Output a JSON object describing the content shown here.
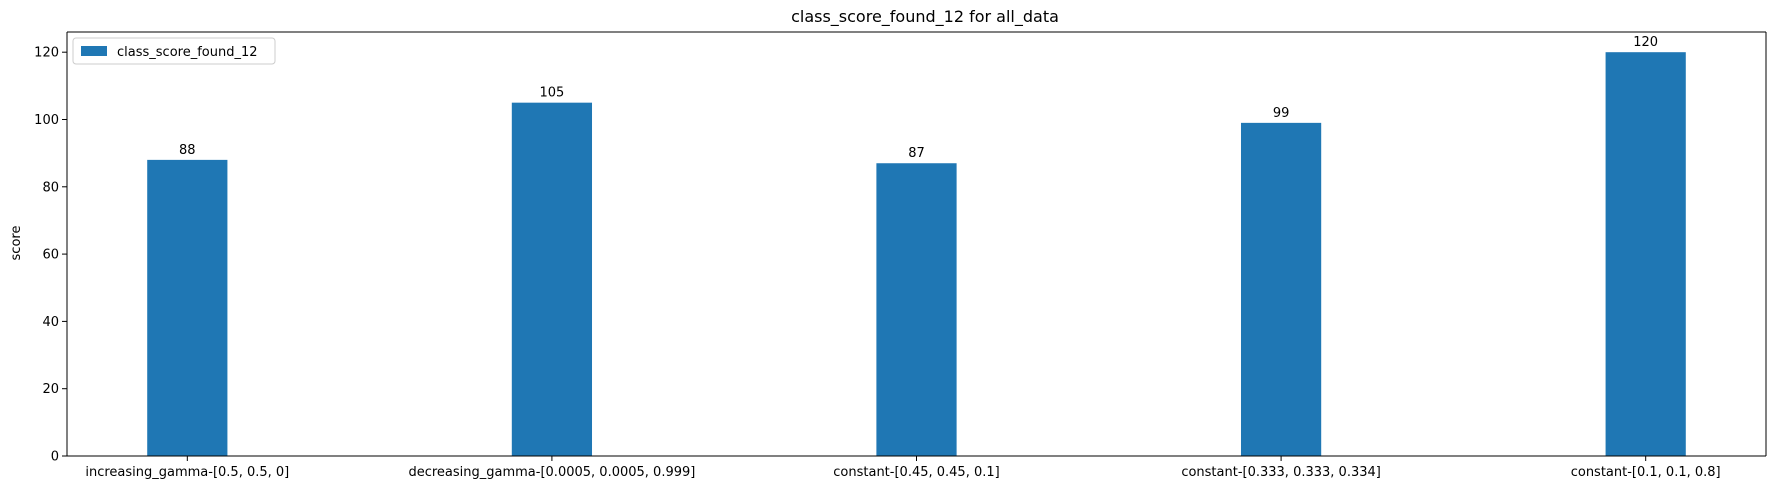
{
  "chart_data": {
    "type": "bar",
    "title": "class_score_found_12 for all_data",
    "xlabel": "",
    "ylabel": "score",
    "ylim": [
      0,
      126
    ],
    "yticks": [
      0,
      20,
      40,
      60,
      80,
      100,
      120
    ],
    "categories": [
      "increasing_gamma-[0.5, 0.5, 0]",
      "decreasing_gamma-[0.0005, 0.0005, 0.999]",
      "constant-[0.45, 0.45, 0.1]",
      "constant-[0.333, 0.333, 0.334]",
      "constant-[0.1, 0.1, 0.8]"
    ],
    "series": [
      {
        "name": "class_score_found_12",
        "values": [
          88,
          105,
          87,
          99,
          120
        ],
        "color": "#1f77b4"
      }
    ],
    "legend_position": "top-left",
    "grid": false
  }
}
